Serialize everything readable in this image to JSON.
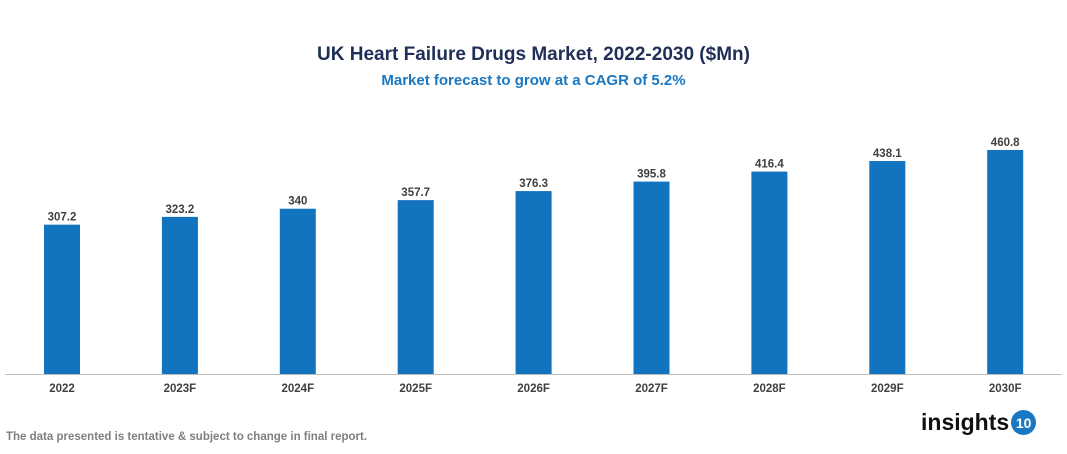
{
  "chart_data": {
    "type": "bar",
    "title": "UK Heart Failure Drugs Market, 2022-2030 ($Mn)",
    "subtitle": "Market forecast to grow at a CAGR of 5.2%",
    "categories": [
      "2022",
      "2023F",
      "2024F",
      "2025F",
      "2026F",
      "2027F",
      "2028F",
      "2029F",
      "2030F"
    ],
    "values": [
      307.2,
      323.2,
      340,
      357.7,
      376.3,
      395.8,
      416.4,
      438.1,
      460.8
    ],
    "data_labels": [
      "307.2",
      "323.2",
      "340",
      "357.7",
      "376.3",
      "395.8",
      "416.4",
      "438.1",
      "460.8"
    ],
    "xlabel": "",
    "ylabel": "",
    "ylim": [
      0,
      460.8
    ],
    "grid": false,
    "bar_color": "#1273be"
  },
  "footer": {
    "note": "The data presented is tentative & subject to change in final report."
  },
  "logo": {
    "text": "insights",
    "badge": "10"
  }
}
